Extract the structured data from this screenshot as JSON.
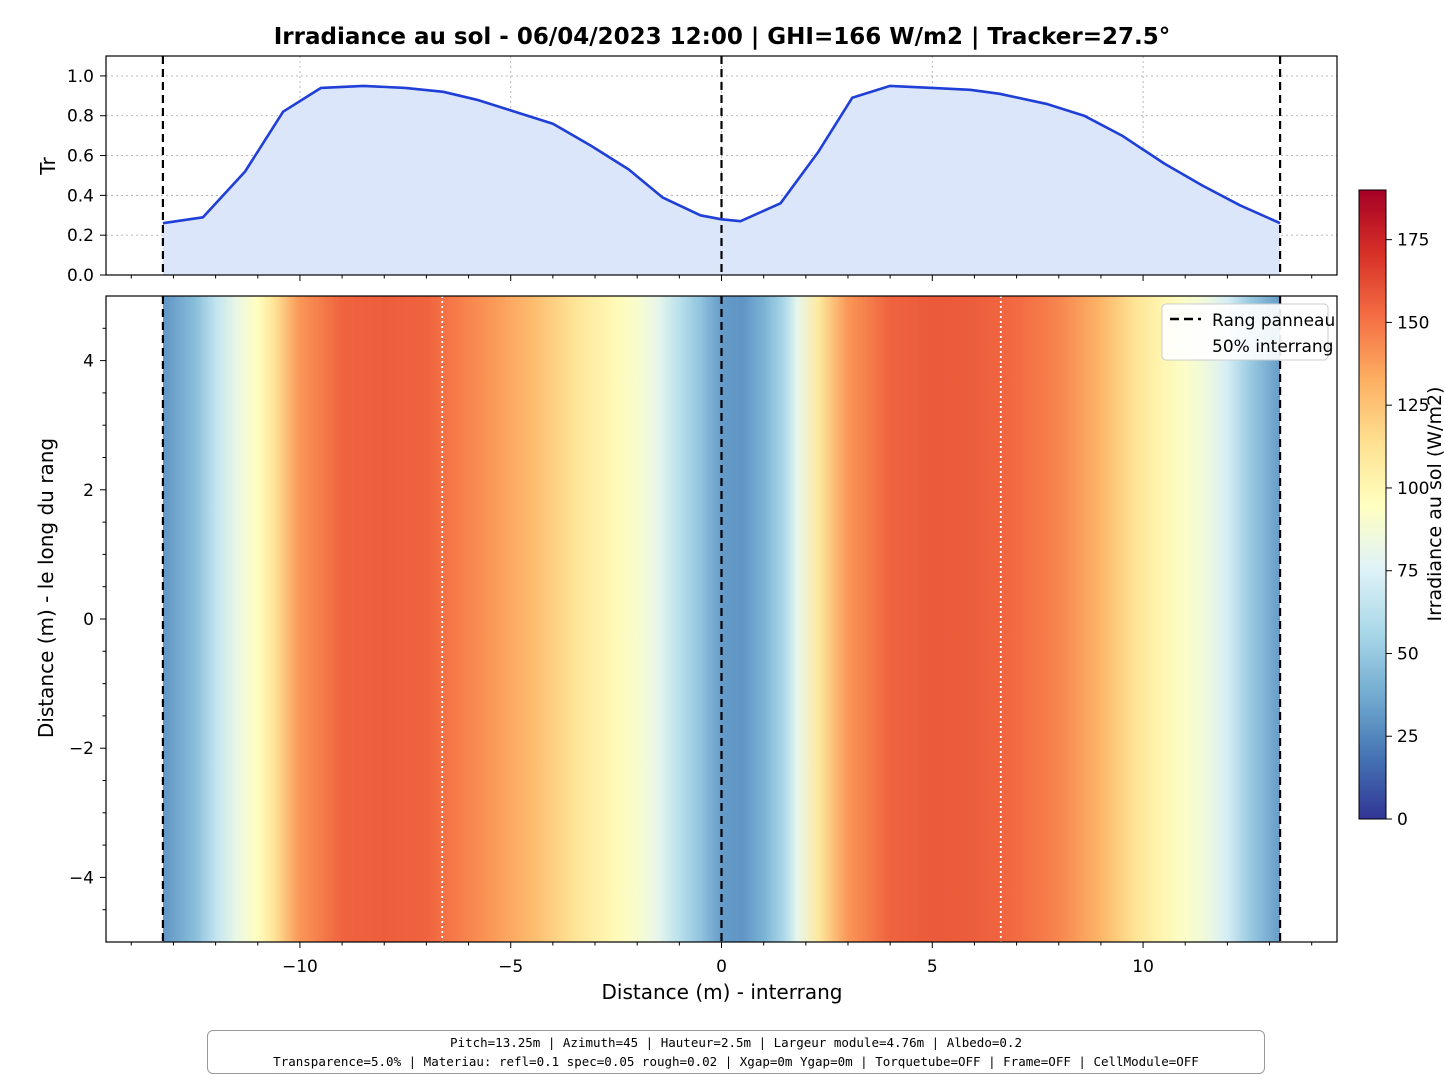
{
  "title": "Irradiance au sol - 06/04/2023 12:00  |  GHI=166 W/m2  |  Tracker=27.5°",
  "info_box": {
    "line1": "Pitch=13.25m   |   Azimuth=45   |   Hauteur=2.5m   |   Largeur module=4.76m   |   Albedo=0.2",
    "line2": "Transparence=5.0%   |   Materiau: refl=0.1  spec=0.05  rough=0.02   |   Xgap=0m   Ygap=0m   |   Torquetube=OFF   |   Frame=OFF   |   CellModule=OFF"
  },
  "chart_data": [
    {
      "type": "area",
      "ylabel": "Tr",
      "xlim": [
        -14.6,
        14.6
      ],
      "ylim": [
        0,
        1.1
      ],
      "yticks": [
        0.0,
        0.2,
        0.4,
        0.6,
        0.8,
        1.0
      ],
      "ytick_labels": [
        "0.0",
        "0.2",
        "0.4",
        "0.6",
        "0.8",
        "1.0"
      ],
      "grid": true,
      "line_color": "#1f3fd6",
      "fill_color": "#dbe6fb",
      "x": [
        -13.25,
        -12.3,
        -11.3,
        -10.4,
        -9.5,
        -8.5,
        -7.5,
        -6.6,
        -5.8,
        -4.9,
        -4.0,
        -3.1,
        -2.2,
        -1.4,
        -0.5,
        0.0,
        0.45,
        1.4,
        2.3,
        3.1,
        4.0,
        5.0,
        5.9,
        6.6,
        7.7,
        8.6,
        9.5,
        10.5,
        11.4,
        12.3,
        13.25
      ],
      "y": [
        0.26,
        0.29,
        0.52,
        0.82,
        0.94,
        0.95,
        0.94,
        0.92,
        0.88,
        0.82,
        0.76,
        0.65,
        0.53,
        0.39,
        0.3,
        0.28,
        0.27,
        0.36,
        0.62,
        0.89,
        0.95,
        0.94,
        0.93,
        0.91,
        0.86,
        0.8,
        0.7,
        0.56,
        0.45,
        0.35,
        0.26
      ],
      "panel_rows_x": [
        -13.25,
        0.0,
        13.25
      ],
      "mid_interrow_x": [
        -6.625,
        6.625
      ]
    },
    {
      "type": "heatmap",
      "xlabel": "Distance (m) - interrang",
      "ylabel": "Distance (m) - le long du rang",
      "xlim": [
        -14.6,
        14.6
      ],
      "ylim": [
        -5,
        5
      ],
      "xticks": [
        -10,
        -5,
        0,
        5,
        10
      ],
      "xtick_labels": [
        "−10",
        "−5",
        "0",
        "5",
        "10"
      ],
      "yticks": [
        -4,
        -2,
        0,
        2,
        4
      ],
      "ytick_labels": [
        "−4",
        "−2",
        "0",
        "2",
        "4"
      ],
      "data_extent_x": [
        -13.25,
        13.25
      ],
      "profile_x": [
        -13.25,
        -12.5,
        -12.0,
        -11.5,
        -11.0,
        -10.6,
        -10.0,
        -9.0,
        -8.0,
        -7.0,
        -6.5,
        -5.5,
        -4.5,
        -3.5,
        -2.5,
        -2.0,
        -1.5,
        -1.0,
        -0.5,
        0.0,
        0.5,
        1.0,
        1.5,
        1.8,
        2.3,
        3.0,
        4.0,
        5.0,
        6.0,
        7.0,
        8.0,
        9.0,
        9.8,
        10.5,
        11.0,
        11.5,
        12.0,
        12.5,
        13.25
      ],
      "profile_values": [
        30,
        45,
        65,
        82,
        95,
        112,
        140,
        155,
        157,
        155,
        150,
        140,
        128,
        112,
        98,
        90,
        80,
        62,
        48,
        32,
        30,
        40,
        58,
        80,
        108,
        140,
        155,
        158,
        157,
        153,
        145,
        130,
        112,
        100,
        92,
        85,
        72,
        52,
        32
      ],
      "colorbar": {
        "label": "Irradiance au sol (W/m2)",
        "range": [
          0,
          190
        ],
        "ticks": [
          0,
          25,
          50,
          75,
          100,
          125,
          150,
          175
        ],
        "tick_labels": [
          "0",
          "25",
          "50",
          "75",
          "100",
          "125",
          "150",
          "175"
        ],
        "colormap": "RdYlBu_r"
      },
      "legend": {
        "placement": "top-right",
        "entries": [
          {
            "label": "Rang panneau",
            "style": "dashed-black"
          },
          {
            "label": "50% interrang",
            "style": "dotted-white"
          }
        ]
      },
      "panel_rows_x": [
        -13.25,
        0.0,
        13.25
      ],
      "mid_interrow_x": [
        -6.625,
        6.625
      ]
    }
  ]
}
